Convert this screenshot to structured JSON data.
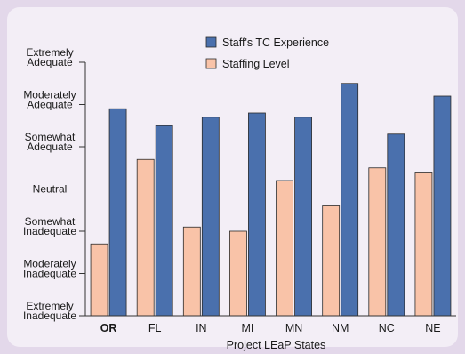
{
  "colors": {
    "background": "#e3d8ea",
    "panel": "#f3eef6",
    "axis": "#333333",
    "highlight_label": "#f0a070"
  },
  "chart_data": {
    "type": "bar",
    "title": "",
    "xlabel": "Project LEaP States",
    "ylabel": "",
    "categories": [
      "OR",
      "FL",
      "IN",
      "MI",
      "MN",
      "NM",
      "NC",
      "NE"
    ],
    "highlight_category": "OR",
    "ylim": [
      0,
      6
    ],
    "y_tick_values": [
      0,
      1,
      2,
      3,
      4,
      5,
      6
    ],
    "y_tick_labels": [
      [
        "Extremely",
        "Inadequate"
      ],
      [
        "Moderately",
        "Inadequate"
      ],
      [
        "Somewhat",
        "Inadequate"
      ],
      [
        "Neutral"
      ],
      [
        "Somewhat",
        "Adequate"
      ],
      [
        "Moderately",
        "Adequate"
      ],
      [
        "Extremely",
        "Adequate"
      ]
    ],
    "legend_position": "top-center",
    "grid": false,
    "series": [
      {
        "name": "Staff's TC Experience",
        "color": "#4a70ad",
        "values": [
          4.9,
          4.5,
          4.7,
          4.8,
          4.7,
          5.5,
          4.3,
          5.2
        ]
      },
      {
        "name": "Staffing Level",
        "color": "#f9c3a8",
        "values": [
          1.7,
          3.7,
          2.1,
          2.0,
          3.2,
          2.6,
          3.5,
          3.4
        ]
      }
    ]
  }
}
